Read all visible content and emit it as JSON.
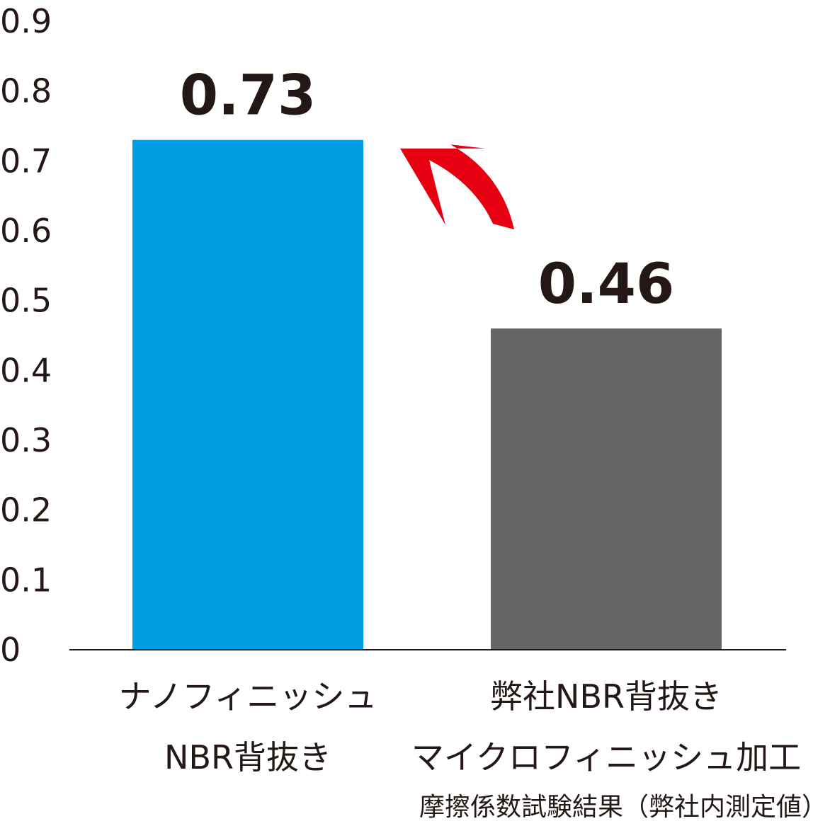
{
  "chart_data": {
    "type": "bar",
    "categories": [
      [
        "ナノフィニッシュ",
        "NBR背抜き"
      ],
      [
        "弊社NBR背抜き",
        "マイクロフィニッシュ加工"
      ]
    ],
    "values": [
      0.73,
      0.46
    ],
    "data_labels": [
      "0.73",
      "0.46"
    ],
    "bar_colors": [
      "#009fe3",
      "#666465"
    ],
    "arrow_color": "#e60012",
    "ylim": [
      0,
      0.9
    ],
    "yticks": [
      "0",
      "0.1",
      "0.2",
      "0.3",
      "0.4",
      "0.5",
      "0.6",
      "0.7",
      "0.8",
      "0.9"
    ],
    "grid": false,
    "caption": "摩擦係数試験結果（弊社内測定値）"
  }
}
